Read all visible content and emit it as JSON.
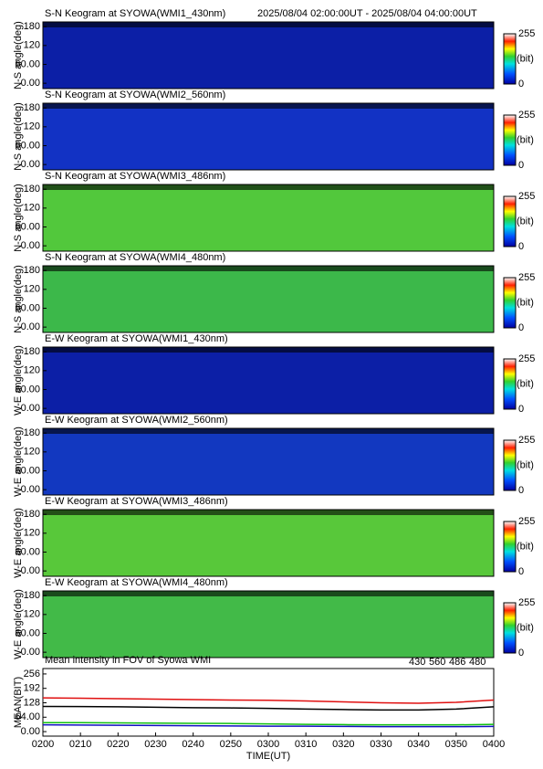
{
  "header": {
    "time_range": "2025/08/04 02:00:00UT - 2025/08/04 04:00:00UT"
  },
  "panels": [
    {
      "title": "S-N Keogram at SYOWA(WMI1_430nm)",
      "ylabel": "N-S angle(deg)",
      "color": "#0c1fa6",
      "ylim": [
        -17,
        195
      ],
      "yticks": [
        180,
        120,
        {
          "value": 60,
          "label": "60.00"
        },
        {
          "value": 0,
          "label": "0.00"
        }
      ],
      "colorbar": {
        "max": 255,
        "unit": "(bit)",
        "min": 0
      }
    },
    {
      "title": "S-N Keogram at SYOWA(WMI2_560nm)",
      "ylabel": "N-S angle(deg)",
      "color": "#1232c4",
      "ylim": [
        -17,
        195
      ],
      "yticks": [
        180,
        120,
        {
          "value": 60,
          "label": "60.00"
        },
        {
          "value": 0,
          "label": "0.00"
        }
      ],
      "colorbar": {
        "max": 255,
        "unit": "(bit)",
        "min": 0
      }
    },
    {
      "title": "S-N Keogram at SYOWA(WMI3_486nm)",
      "ylabel": "N-S angle(deg)",
      "color": "#52c83c",
      "ylim": [
        -17,
        195
      ],
      "yticks": [
        180,
        120,
        {
          "value": 60,
          "label": "60.00"
        },
        {
          "value": 0,
          "label": "0.00"
        }
      ],
      "colorbar": {
        "max": 255,
        "unit": "(bit)",
        "min": 0
      }
    },
    {
      "title": "S-N Keogram at SYOWA(WMI4_480nm)",
      "ylabel": "N-S angle(deg)",
      "color": "#3cb84a",
      "ylim": [
        -17,
        195
      ],
      "yticks": [
        180,
        120,
        {
          "value": 60,
          "label": "60.00"
        },
        {
          "value": 0,
          "label": "0.00"
        }
      ],
      "colorbar": {
        "max": 255,
        "unit": "(bit)",
        "min": 0
      }
    },
    {
      "title": "E-W Keogram at SYOWA(WMI1_430nm)",
      "ylabel": "W-E angle(deg)",
      "color": "#0c1fa6",
      "ylim": [
        -17,
        195
      ],
      "yticks": [
        180,
        120,
        {
          "value": 60,
          "label": "60.00"
        },
        {
          "value": 0,
          "label": "0.00"
        }
      ],
      "colorbar": {
        "max": 255,
        "unit": "(bit)",
        "min": 0
      }
    },
    {
      "title": "E-W Keogram at SYOWA(WMI2_560nm)",
      "ylabel": "W-E angle(deg)",
      "color": "#1238c0",
      "ylim": [
        -17,
        195
      ],
      "yticks": [
        180,
        120,
        {
          "value": 60,
          "label": "60.00"
        },
        {
          "value": 0,
          "label": "0.00"
        }
      ],
      "colorbar": {
        "max": 255,
        "unit": "(bit)",
        "min": 0
      }
    },
    {
      "title": "E-W Keogram at SYOWA(WMI3_486nm)",
      "ylabel": "W-E angle(deg)",
      "color": "#58c83a",
      "ylim": [
        -17,
        195
      ],
      "yticks": [
        180,
        120,
        {
          "value": 60,
          "label": "60.00"
        },
        {
          "value": 0,
          "label": "0.00"
        }
      ],
      "colorbar": {
        "max": 255,
        "unit": "(bit)",
        "min": 0
      }
    },
    {
      "title": "E-W Keogram at SYOWA(WMI4_480nm)",
      "ylabel": "W-E angle(deg)",
      "color": "#42ba48",
      "ylim": [
        -17,
        195
      ],
      "yticks": [
        180,
        120,
        {
          "value": 60,
          "label": "60.00"
        },
        {
          "value": 0,
          "label": "0.00"
        }
      ],
      "colorbar": {
        "max": 255,
        "unit": "(bit)",
        "min": 0
      }
    }
  ],
  "chart_data": {
    "type": "line",
    "title": "Mean intensity in FOV of Syowa WMI",
    "ylabel": "MEAN(BIT)",
    "xlabel": "TIME(UT)",
    "categories": [
      "0200",
      "0210",
      "0220",
      "0230",
      "0240",
      "0250",
      "0300",
      "0310",
      "0320",
      "0330",
      "0340",
      "0350",
      "0400"
    ],
    "series": [
      {
        "name": "430",
        "color": "#1010c0",
        "values": [
          30,
          29,
          28,
          27,
          26,
          25,
          24,
          24,
          23,
          22,
          22,
          22,
          23
        ]
      },
      {
        "name": "560",
        "color": "#10c010",
        "values": [
          40,
          40,
          39,
          38,
          37,
          36,
          34,
          32,
          31,
          30,
          30,
          30,
          32
        ]
      },
      {
        "name": "486",
        "color": "#e01010",
        "values": [
          150,
          148,
          146,
          144,
          142,
          140,
          139,
          136,
          132,
          128,
          126,
          130,
          140
        ]
      },
      {
        "name": "480",
        "color": "#000000",
        "values": [
          112,
          111,
          110,
          108,
          106,
          105,
          103,
          100,
          98,
          96,
          96,
          100,
          110
        ]
      }
    ],
    "ylim": [
      -20,
      280
    ],
    "yticks": [
      256,
      192,
      128,
      {
        "value": 64,
        "label": "64.00"
      },
      {
        "value": 0,
        "label": "0.00"
      }
    ]
  }
}
